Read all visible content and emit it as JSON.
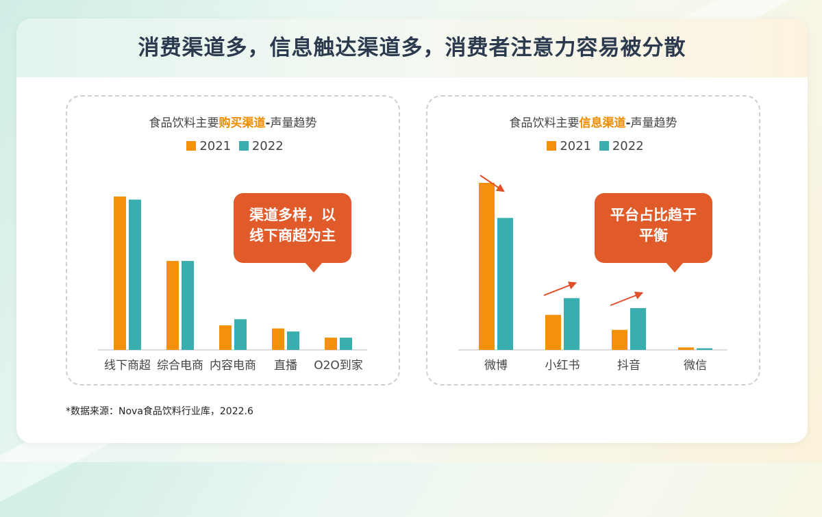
{
  "page_title": "消费渠道多，信息触达渠道多，消费者注意力容易被分散",
  "colors": {
    "y2021": "#f5900a",
    "y2022": "#3aaeae",
    "callout": "#e05a2a",
    "arrow": "#e0502a"
  },
  "panels": [
    {
      "title_pre": "食品饮料主要",
      "title_hl": "购买渠道",
      "title_dash": "-",
      "title_post": "声量趋势",
      "callout_lines": [
        "渠道多样，以",
        "线下商超为主"
      ]
    },
    {
      "title_pre": "食品饮料主要",
      "title_hl": "信息渠道",
      "title_dash": "-",
      "title_post": "声量趋势",
      "callout_lines": [
        "平台占比趋于",
        "平衡"
      ]
    }
  ],
  "legend": [
    "2021",
    "2022"
  ],
  "source": "*数据来源：Nova食品饮料行业库，2022.6",
  "chart_data": [
    {
      "type": "bar",
      "categories": [
        "线下商超",
        "综合电商",
        "内容电商",
        "直播",
        "O2O到家"
      ],
      "series": [
        {
          "name": "2021",
          "values": [
            100,
            58,
            16,
            14,
            8
          ]
        },
        {
          "name": "2022",
          "values": [
            98,
            58,
            20,
            12,
            8
          ]
        }
      ],
      "ylim": [
        0,
        100
      ],
      "grid": false,
      "legend_position": "top"
    },
    {
      "type": "bar",
      "categories": [
        "微博",
        "小红书",
        "抖音",
        "微信"
      ],
      "series": [
        {
          "name": "2021",
          "values": [
            100,
            21,
            12,
            1.5
          ]
        },
        {
          "name": "2022",
          "values": [
            79,
            31,
            25,
            1
          ]
        }
      ],
      "trend_arrows": [
        "down",
        "up",
        "up",
        "none"
      ],
      "ylim": [
        0,
        100
      ],
      "grid": false,
      "legend_position": "top"
    }
  ]
}
